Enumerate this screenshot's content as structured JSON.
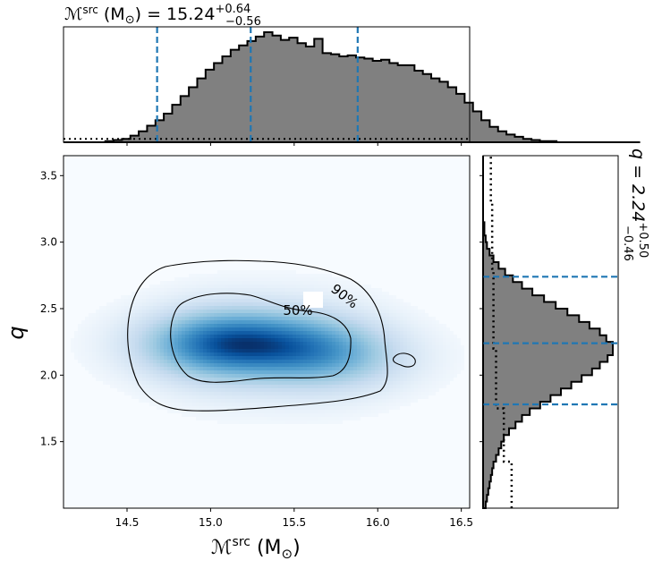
{
  "chart_data": {
    "type": "heatmap",
    "title_top": {
      "main": "ℳ",
      "sup": "src",
      "mid": " (M",
      "sun": "⊙",
      "tail": ") = 15.24",
      "plus": "+0.64",
      "minus": "−0.56"
    },
    "title_right": {
      "main": "q = 2.24",
      "plus": "+0.50",
      "minus": "−0.46"
    },
    "xlabel": {
      "main": "ℳ",
      "sup": "src",
      "mid": " (M",
      "sun": "⊙",
      "tail": ")"
    },
    "ylabel": "q",
    "xlim": [
      14.12,
      16.55
    ],
    "ylim": [
      1.0,
      3.65
    ],
    "x_ticks": [
      "14.5",
      "15.0",
      "15.5",
      "16.0",
      "16.5"
    ],
    "y_ticks": [
      "1.5",
      "2.0",
      "2.5",
      "3.0",
      "3.5"
    ],
    "contour_labels": [
      "90%",
      "50%"
    ],
    "chirp_mass_quantiles": [
      14.68,
      15.24,
      15.88
    ],
    "q_quantiles": [
      1.78,
      2.24,
      2.74
    ],
    "chirp_mass_hist": {
      "edges_start": 14.12,
      "bin_width": 0.05,
      "counts": [
        0,
        0,
        0,
        0,
        0,
        0.01,
        0.02,
        0.03,
        0.06,
        0.1,
        0.15,
        0.2,
        0.26,
        0.34,
        0.42,
        0.5,
        0.58,
        0.66,
        0.72,
        0.78,
        0.84,
        0.88,
        0.92,
        0.96,
        1.0,
        0.97,
        0.93,
        0.95,
        0.9,
        0.87,
        0.94,
        0.81,
        0.8,
        0.78,
        0.79,
        0.77,
        0.76,
        0.74,
        0.75,
        0.72,
        0.7,
        0.7,
        0.65,
        0.62,
        0.58,
        0.55,
        0.5,
        0.44,
        0.36,
        0.28,
        0.2,
        0.14,
        0.1,
        0.07,
        0.05,
        0.03,
        0.02,
        0.01,
        0.01,
        0,
        0,
        0,
        0,
        0,
        0,
        0,
        0,
        0,
        0
      ],
      "prior_level": 0.03
    },
    "q_hist": {
      "edges_start": 1.0,
      "bin_width": 0.05,
      "counts": [
        0.02,
        0.03,
        0.04,
        0.05,
        0.06,
        0.07,
        0.08,
        0.1,
        0.12,
        0.14,
        0.16,
        0.2,
        0.25,
        0.3,
        0.36,
        0.44,
        0.52,
        0.6,
        0.68,
        0.76,
        0.84,
        0.9,
        0.96,
        1.0,
        1.0,
        0.95,
        0.9,
        0.82,
        0.74,
        0.65,
        0.56,
        0.47,
        0.38,
        0.3,
        0.23,
        0.17,
        0.12,
        0.08,
        0.05,
        0.03,
        0.02,
        0.01,
        0.01,
        0,
        0,
        0,
        0,
        0,
        0,
        0,
        0,
        0,
        0
      ],
      "prior_segments": [
        [
          1.0,
          0.22
        ],
        [
          1.35,
          0.16
        ],
        [
          1.75,
          0.1
        ],
        [
          2.2,
          0.08
        ],
        [
          2.8,
          0.07
        ],
        [
          3.3,
          0.06
        ],
        [
          3.65,
          0.06
        ]
      ]
    },
    "density_peaks": [
      {
        "x": 14.98,
        "y": 2.23,
        "w": 1.0
      },
      {
        "x": 15.25,
        "y": 2.25,
        "w": 0.7
      },
      {
        "x": 15.6,
        "y": 2.2,
        "w": 0.6
      },
      {
        "x": 15.8,
        "y": 2.12,
        "w": 0.45
      }
    ],
    "colors": {
      "hist_fill": "#808080",
      "quantile_line": "#1f77b4",
      "cmap_low": "#f7fbff",
      "cmap_high": "#08306b"
    }
  }
}
